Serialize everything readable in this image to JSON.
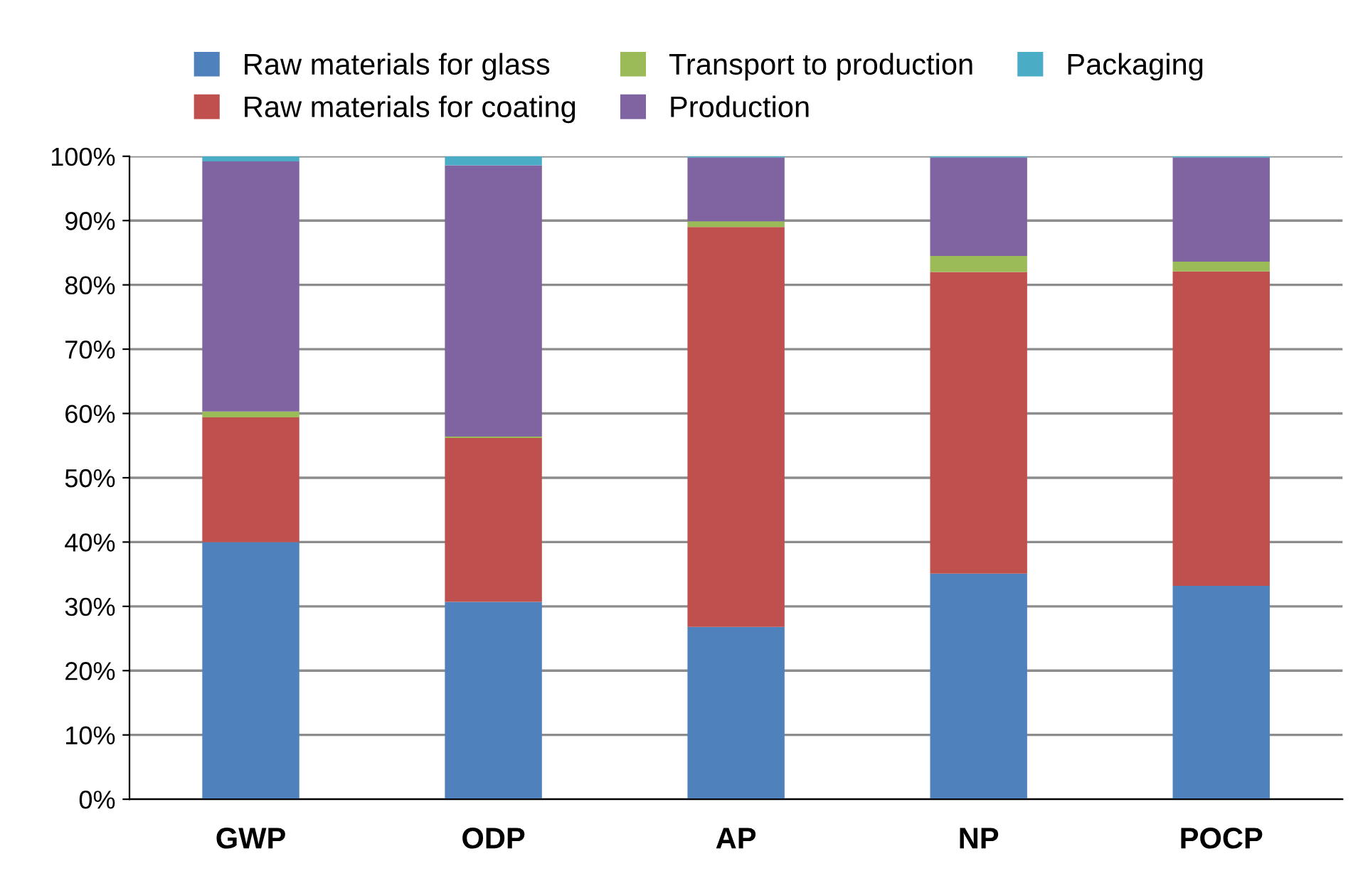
{
  "chart_data": {
    "type": "bar",
    "stacked": true,
    "categories": [
      "GWP",
      "ODP",
      "AP",
      "NP",
      "POCP"
    ],
    "series": [
      {
        "name": "Raw materials for glass",
        "color": "#4f81bd",
        "values": [
          40.0,
          30.7,
          26.8,
          35.1,
          33.2
        ]
      },
      {
        "name": "Raw materials for coating",
        "color": "#c0504d",
        "values": [
          19.4,
          25.5,
          62.2,
          46.9,
          48.9
        ]
      },
      {
        "name": "Transport to production",
        "color": "#9bbb59",
        "values": [
          0.9,
          0.2,
          0.9,
          2.5,
          1.5
        ]
      },
      {
        "name": "Production",
        "color": "#8064a2",
        "values": [
          38.9,
          42.2,
          9.9,
          15.3,
          16.2
        ]
      },
      {
        "name": "Packaging",
        "color": "#4bacc6",
        "values": [
          0.8,
          1.4,
          0.2,
          0.2,
          0.2
        ]
      }
    ],
    "ylim": [
      0,
      100
    ],
    "yticks": [
      {
        "value": 0,
        "label": "0%"
      },
      {
        "value": 10,
        "label": "10%"
      },
      {
        "value": 20,
        "label": "20%"
      },
      {
        "value": 30,
        "label": "30%"
      },
      {
        "value": 40,
        "label": "40%"
      },
      {
        "value": 50,
        "label": "50%"
      },
      {
        "value": 60,
        "label": "60%"
      },
      {
        "value": 70,
        "label": "70%"
      },
      {
        "value": 80,
        "label": "80%"
      },
      {
        "value": 90,
        "label": "90%"
      },
      {
        "value": 100,
        "label": "100%"
      }
    ],
    "grid": "y",
    "legend": "top"
  }
}
